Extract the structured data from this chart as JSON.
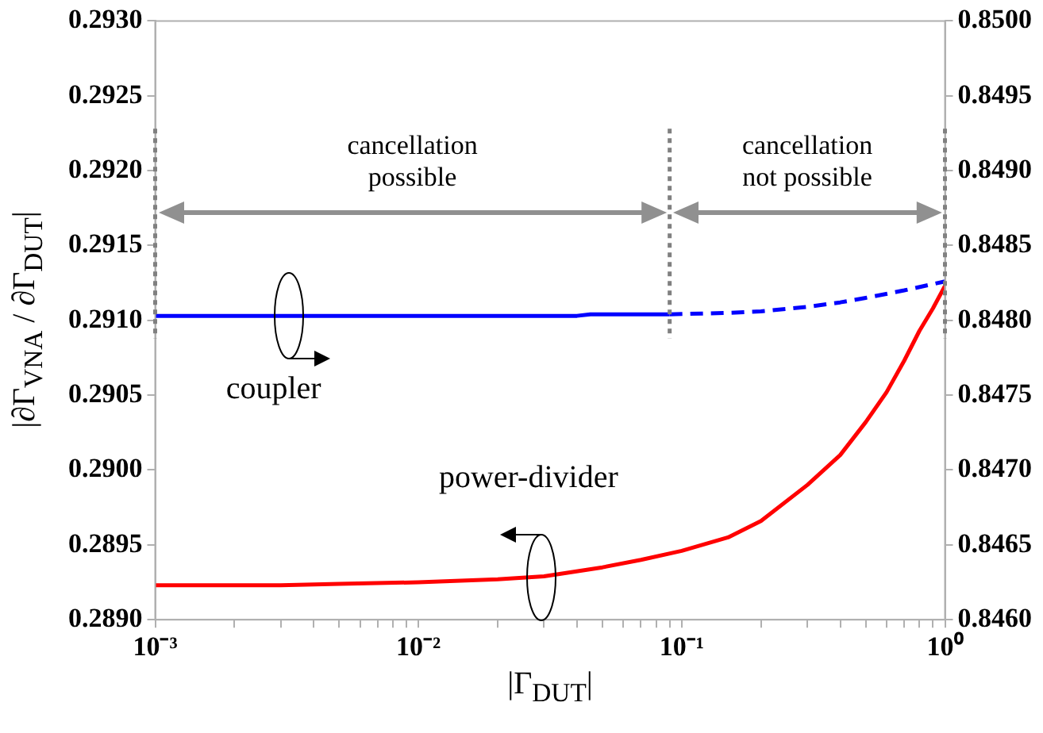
{
  "chart_data": {
    "type": "line",
    "xlabel": "|Γ$_{DUT}$|",
    "ylabel": "|∂Γ$_{VNA}$ / ∂Γ$_{DUT}$|",
    "log": "x",
    "grid": false,
    "legend": false,
    "marker": "none",
    "xlim": [
      0.001,
      1
    ],
    "xticks": [
      {
        "value": 0.001,
        "label": "10⁻³"
      },
      {
        "value": 0.002,
        "label": null
      },
      {
        "value": 0.003,
        "label": null
      },
      {
        "value": 0.004,
        "label": null
      },
      {
        "value": 0.005,
        "label": null
      },
      {
        "value": 0.006,
        "label": null
      },
      {
        "value": 0.007,
        "label": null
      },
      {
        "value": 0.008,
        "label": null
      },
      {
        "value": 0.009,
        "label": null
      },
      {
        "value": 0.01,
        "label": "10⁻²"
      },
      {
        "value": 0.02,
        "label": null
      },
      {
        "value": 0.03,
        "label": null
      },
      {
        "value": 0.04,
        "label": null
      },
      {
        "value": 0.05,
        "label": null
      },
      {
        "value": 0.06,
        "label": null
      },
      {
        "value": 0.07,
        "label": null
      },
      {
        "value": 0.08,
        "label": null
      },
      {
        "value": 0.09,
        "label": null
      },
      {
        "value": 0.1,
        "label": "10⁻¹"
      },
      {
        "value": 0.2,
        "label": null
      },
      {
        "value": 0.3,
        "label": null
      },
      {
        "value": 0.4,
        "label": null
      },
      {
        "value": 0.5,
        "label": null
      },
      {
        "value": 0.6,
        "label": null
      },
      {
        "value": 0.7,
        "label": null
      },
      {
        "value": 0.8,
        "label": null
      },
      {
        "value": 0.9,
        "label": null
      },
      {
        "value": 1,
        "label": "10⁰"
      }
    ],
    "ylim": [
      0.289,
      0.293
    ],
    "yticks": [
      {
        "value": 0.289,
        "label": "0.2890"
      },
      {
        "value": 0.2895,
        "label": "0.2895"
      },
      {
        "value": 0.29,
        "label": "0.2900"
      },
      {
        "value": 0.2905,
        "label": "0.2905"
      },
      {
        "value": 0.291,
        "label": "0.2910"
      },
      {
        "value": 0.2915,
        "label": "0.2915"
      },
      {
        "value": 0.292,
        "label": "0.2920"
      },
      {
        "value": 0.2925,
        "label": "0.2925"
      },
      {
        "value": 0.293,
        "label": "0.2930"
      }
    ],
    "y2lim": [
      0.846,
      0.85
    ],
    "y2ticks": [
      {
        "value": 0.846,
        "label": "0.8460"
      },
      {
        "value": 0.8465,
        "label": "0.8465"
      },
      {
        "value": 0.847,
        "label": "0.8470"
      },
      {
        "value": 0.8475,
        "label": "0.8475"
      },
      {
        "value": 0.848,
        "label": "0.8480"
      },
      {
        "value": 0.8485,
        "label": "0.8485"
      },
      {
        "value": 0.849,
        "label": "0.8490"
      },
      {
        "value": 0.8495,
        "label": "0.8495"
      },
      {
        "value": 0.85,
        "label": "0.8500"
      }
    ],
    "series": [
      {
        "name": "coupler",
        "color": "#0000ff",
        "axis": "y2",
        "line_style": "solid",
        "x": [
          0.001,
          0.04,
          0.045,
          0.09
        ],
        "values": [
          0.84803,
          0.84803,
          0.84804,
          0.84804
        ]
      },
      {
        "color": "#0000ff",
        "axis": "y2",
        "line_style": "dashed",
        "x": [
          0.09,
          0.15,
          0.2,
          0.3,
          0.4,
          0.5,
          0.7,
          1
        ],
        "values": [
          0.84804,
          0.84805,
          0.84806,
          0.84809,
          0.84812,
          0.84815,
          0.8482,
          0.84826
        ]
      },
      {
        "name": "power-divider",
        "color": "#ff0000",
        "axis": "y",
        "line_style": "solid",
        "x": [
          0.001,
          0.003,
          0.005,
          0.01,
          0.02,
          0.03,
          0.05,
          0.07,
          0.1,
          0.15,
          0.2,
          0.3,
          0.4,
          0.5,
          0.6,
          0.7,
          0.8,
          0.9,
          1
        ],
        "values": [
          0.28923,
          0.28923,
          0.28924,
          0.28925,
          0.28927,
          0.28929,
          0.28935,
          0.2894,
          0.28946,
          0.28955,
          0.28966,
          0.2899,
          0.2901,
          0.29032,
          0.29052,
          0.29073,
          0.29093,
          0.29108,
          0.29123
        ]
      }
    ],
    "ref_lines": [
      {
        "axis": "x",
        "value": 0.001,
        "color": "#808080",
        "line_style": "dotted"
      },
      {
        "axis": "x",
        "value": 0.09,
        "color": "#808080",
        "line_style": "dotted"
      },
      {
        "axis": "x",
        "value": 1,
        "color": "#808080",
        "line_style": "dotted"
      }
    ],
    "annotations": [
      "cancellation possible",
      "cancellation not possible"
    ]
  }
}
